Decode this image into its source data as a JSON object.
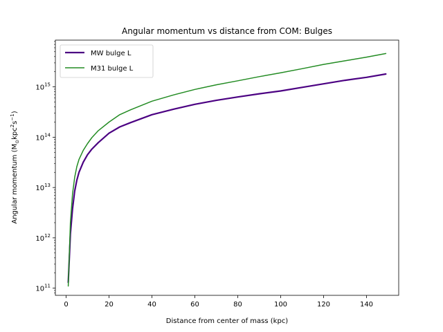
{
  "chart_data": {
    "type": "line",
    "title": "Angular momentum vs distance from COM: Bulges",
    "xlabel": "Distance from center of mass (kpc)",
    "ylabel": {
      "prefix": "Angular momentum (M",
      "sun_subscript": "⊙",
      "unit_kpc": "kpc",
      "kpc_exp": "2",
      "unit_s": "s",
      "s_exp": "−1",
      "suffix": ")"
    },
    "xlim": [
      -5,
      155
    ],
    "ylim": [
      72000000000.0,
      8500000000000000.0
    ],
    "yscale": "log",
    "x_ticks": [
      0,
      20,
      40,
      60,
      80,
      100,
      120,
      140
    ],
    "y_ticks": [
      {
        "value": 100000000000.0,
        "base": "10",
        "exp": "11"
      },
      {
        "value": 1000000000000.0,
        "base": "10",
        "exp": "12"
      },
      {
        "value": 10000000000000.0,
        "base": "10",
        "exp": "13"
      },
      {
        "value": 100000000000000.0,
        "base": "10",
        "exp": "14"
      },
      {
        "value": 1000000000000000.0,
        "base": "10",
        "exp": "15"
      }
    ],
    "grid": false,
    "legend_position": "upper-left",
    "series": [
      {
        "name": "MW bulge L",
        "color": "#4b0082",
        "x": [
          1,
          2,
          3,
          4,
          5,
          6,
          8,
          10,
          12,
          15,
          20,
          25,
          30,
          40,
          50,
          60,
          70,
          80,
          90,
          100,
          110,
          120,
          130,
          140,
          149
        ],
        "y": [
          130000000000.0,
          1200000000000.0,
          3800000000000.0,
          8500000000000.0,
          14000000000000.0,
          20000000000000.0,
          32000000000000.0,
          45000000000000.0,
          58000000000000.0,
          78000000000000.0,
          120000000000000.0,
          160000000000000.0,
          195000000000000.0,
          280000000000000.0,
          360000000000000.0,
          450000000000000.0,
          540000000000000.0,
          630000000000000.0,
          730000000000000.0,
          830000000000000.0,
          980000000000000.0,
          1150000000000000.0,
          1350000000000000.0,
          1550000000000000.0,
          1800000000000000.0
        ]
      },
      {
        "name": "M31 bulge L",
        "color": "#228b22",
        "x": [
          1,
          2,
          3,
          4,
          5,
          6,
          8,
          10,
          12,
          15,
          20,
          25,
          30,
          40,
          50,
          60,
          70,
          80,
          90,
          100,
          110,
          120,
          130,
          140,
          149
        ],
        "y": [
          110000000000.0,
          2000000000000.0,
          7500000000000.0,
          16000000000000.0,
          26000000000000.0,
          36000000000000.0,
          55000000000000.0,
          75000000000000.0,
          98000000000000.0,
          135000000000000.0,
          200000000000000.0,
          280000000000000.0,
          350000000000000.0,
          520000000000000.0,
          690000000000000.0,
          890000000000000.0,
          1100000000000000.0,
          1320000000000000.0,
          1600000000000000.0,
          1900000000000000.0,
          2300000000000000.0,
          2800000000000000.0,
          3300000000000000.0,
          3900000000000000.0,
          4600000000000000.0
        ]
      }
    ]
  }
}
